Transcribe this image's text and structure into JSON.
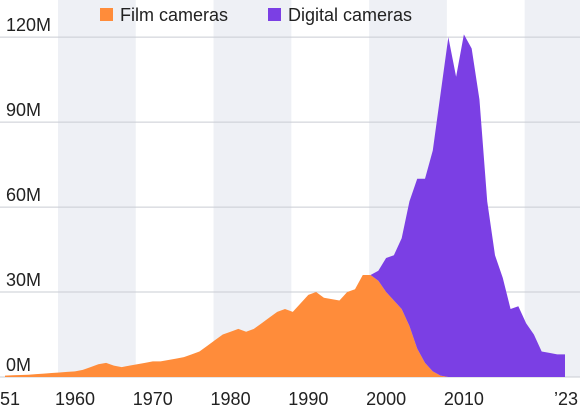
{
  "chart_data": {
    "type": "stacked-area",
    "x": [
      1951,
      1952,
      1953,
      1954,
      1955,
      1956,
      1957,
      1958,
      1959,
      1960,
      1961,
      1962,
      1963,
      1964,
      1965,
      1966,
      1967,
      1968,
      1969,
      1970,
      1971,
      1972,
      1973,
      1974,
      1975,
      1976,
      1977,
      1978,
      1979,
      1980,
      1981,
      1982,
      1983,
      1984,
      1985,
      1986,
      1987,
      1988,
      1989,
      1990,
      1991,
      1992,
      1993,
      1994,
      1995,
      1996,
      1997,
      1998,
      1999,
      2000,
      2001,
      2002,
      2003,
      2004,
      2005,
      2006,
      2007,
      2008,
      2009,
      2010,
      2011,
      2012,
      2013,
      2014,
      2015,
      2016,
      2017,
      2018,
      2019,
      2020,
      2021,
      2022,
      2023
    ],
    "series": [
      {
        "name": "Film cameras",
        "color": "#ff8c3a",
        "values": [
          0.5,
          0.6,
          0.7,
          0.8,
          1,
          1.2,
          1.4,
          1.6,
          1.8,
          2,
          2.5,
          3.5,
          4.5,
          5,
          4,
          3.5,
          4,
          4.5,
          5,
          5.5,
          5.5,
          6,
          6.5,
          7,
          8,
          9,
          11,
          13,
          15,
          16,
          17,
          16,
          17,
          19,
          21,
          23,
          24,
          23,
          26,
          29,
          30,
          28,
          27.5,
          27,
          30,
          31,
          36,
          36,
          34,
          30,
          27,
          24,
          18,
          10,
          5,
          2,
          0.5,
          0,
          0,
          0,
          0,
          0,
          0,
          0,
          0,
          0,
          0,
          0,
          0,
          0,
          0,
          0,
          0
        ]
      },
      {
        "name": "Digital cameras",
        "color": "#7b3fe4",
        "values": [
          0,
          0,
          0,
          0,
          0,
          0,
          0,
          0,
          0,
          0,
          0,
          0,
          0,
          0,
          0,
          0,
          0,
          0,
          0,
          0,
          0,
          0,
          0,
          0,
          0,
          0,
          0,
          0,
          0,
          0,
          0,
          0,
          0,
          0,
          0,
          0,
          0,
          0,
          0,
          0,
          0,
          0,
          0,
          0,
          0,
          0,
          0,
          0,
          3.5,
          12,
          16,
          25,
          44,
          60,
          65,
          78,
          99.5,
          120,
          106,
          121,
          116,
          98,
          62,
          43,
          35,
          24,
          25,
          19,
          15,
          9,
          8.5,
          8,
          8
        ]
      }
    ],
    "xlim": [
      1951,
      2023
    ],
    "xticks": [
      {
        "value": 1951,
        "label": "51"
      },
      1960,
      1970,
      1980,
      1990,
      2000,
      2010,
      {
        "value": 2023,
        "label": "’23"
      }
    ],
    "ylim": [
      0,
      125
    ],
    "yticks": [
      {
        "value": 0,
        "label": "0M"
      },
      {
        "value": 30,
        "label": "30M"
      },
      {
        "value": 60,
        "label": "60M"
      },
      {
        "value": 90,
        "label": "90M"
      },
      {
        "value": 120,
        "label": "120M"
      }
    ],
    "grid": true
  }
}
